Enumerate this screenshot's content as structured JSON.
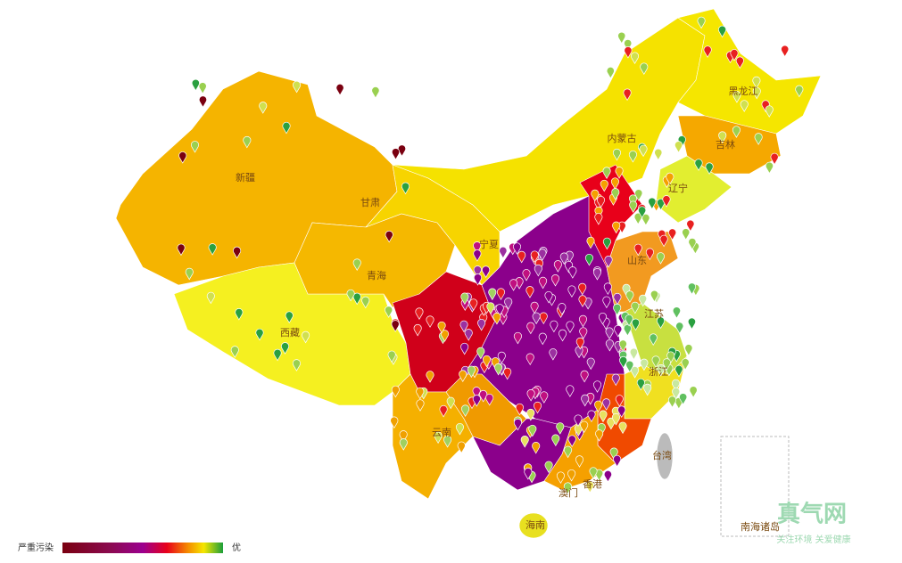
{
  "map": {
    "regions": [
      "新疆",
      "甘肃",
      "青海",
      "西藏",
      "内蒙古",
      "黑龙江",
      "吉林",
      "辽宁",
      "宁夏",
      "山东",
      "江苏",
      "浙江",
      "云南",
      "台湾",
      "香港",
      "澳门",
      "海南"
    ],
    "inset_label": "南海诸岛",
    "legend": {
      "low": "严重污染",
      "high": "优"
    },
    "watermark": {
      "name": "真气网",
      "slogan": "关注环境 关爱健康"
    }
  }
}
